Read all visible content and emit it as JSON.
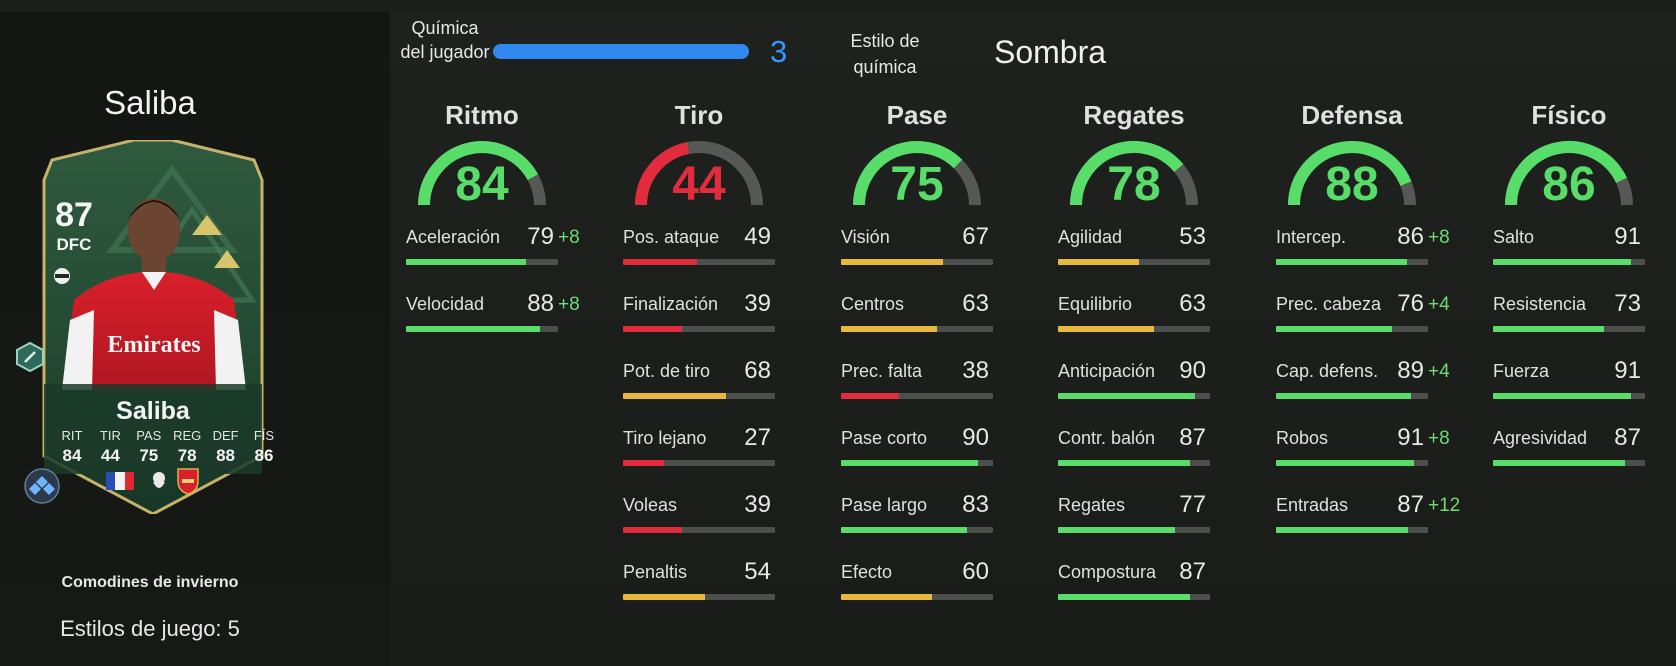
{
  "player": {
    "name": "Saliba",
    "rating": "87",
    "position": "DFC",
    "card_name": "Saliba",
    "card_stats": [
      {
        "label": "RIT",
        "value": "84"
      },
      {
        "label": "TIR",
        "value": "44"
      },
      {
        "label": "PAS",
        "value": "75"
      },
      {
        "label": "REG",
        "value": "78"
      },
      {
        "label": "DEF",
        "value": "88"
      },
      {
        "label": "FÍS",
        "value": "86"
      }
    ],
    "promo": "Comodines de invierno",
    "playstyles": "Estilos de juego: 5"
  },
  "chemistry": {
    "label": "Química del jugador",
    "value": "3",
    "style_label": "Estilo de química",
    "style_value": "Sombra"
  },
  "colors": {
    "green": "#59dd6a",
    "yellow": "#e6b93c",
    "red": "#e22b3c",
    "blue": "#2f89f0"
  },
  "categories": [
    {
      "title": "Ritmo",
      "value": "84",
      "color": "#59dd6a",
      "stats": [
        {
          "label": "Aceleración",
          "value": "79",
          "boost": "+8",
          "color": "#59dd6a"
        },
        {
          "label": "Velocidad",
          "value": "88",
          "boost": "+8",
          "color": "#59dd6a"
        }
      ]
    },
    {
      "title": "Tiro",
      "value": "44",
      "color": "#e22b3c",
      "stats": [
        {
          "label": "Pos. ataque",
          "value": "49",
          "boost": "",
          "color": "#e22b3c"
        },
        {
          "label": "Finalización",
          "value": "39",
          "boost": "",
          "color": "#e22b3c"
        },
        {
          "label": "Pot. de tiro",
          "value": "68",
          "boost": "",
          "color": "#e6b93c"
        },
        {
          "label": "Tiro lejano",
          "value": "27",
          "boost": "",
          "color": "#e22b3c"
        },
        {
          "label": "Voleas",
          "value": "39",
          "boost": "",
          "color": "#e22b3c"
        },
        {
          "label": "Penaltis",
          "value": "54",
          "boost": "",
          "color": "#e6b93c"
        }
      ]
    },
    {
      "title": "Pase",
      "value": "75",
      "color": "#59dd6a",
      "stats": [
        {
          "label": "Visión",
          "value": "67",
          "boost": "",
          "color": "#e6b93c"
        },
        {
          "label": "Centros",
          "value": "63",
          "boost": "",
          "color": "#e6b93c"
        },
        {
          "label": "Prec. falta",
          "value": "38",
          "boost": "",
          "color": "#e22b3c"
        },
        {
          "label": "Pase corto",
          "value": "90",
          "boost": "",
          "color": "#59dd6a"
        },
        {
          "label": "Pase largo",
          "value": "83",
          "boost": "",
          "color": "#59dd6a"
        },
        {
          "label": "Efecto",
          "value": "60",
          "boost": "",
          "color": "#e6b93c"
        }
      ]
    },
    {
      "title": "Regates",
      "value": "78",
      "color": "#59dd6a",
      "stats": [
        {
          "label": "Agilidad",
          "value": "53",
          "boost": "",
          "color": "#e6b93c"
        },
        {
          "label": "Equilibrio",
          "value": "63",
          "boost": "",
          "color": "#e6b93c"
        },
        {
          "label": "Anticipación",
          "value": "90",
          "boost": "",
          "color": "#59dd6a"
        },
        {
          "label": "Contr. balón",
          "value": "87",
          "boost": "",
          "color": "#59dd6a"
        },
        {
          "label": "Regates",
          "value": "77",
          "boost": "",
          "color": "#59dd6a"
        },
        {
          "label": "Compostura",
          "value": "87",
          "boost": "",
          "color": "#59dd6a"
        }
      ]
    },
    {
      "title": "Defensa",
      "value": "88",
      "color": "#59dd6a",
      "stats": [
        {
          "label": "Intercep.",
          "value": "86",
          "boost": "+8",
          "color": "#59dd6a"
        },
        {
          "label": "Prec. cabeza",
          "value": "76",
          "boost": "+4",
          "color": "#59dd6a"
        },
        {
          "label": "Cap. defens.",
          "value": "89",
          "boost": "+4",
          "color": "#59dd6a"
        },
        {
          "label": "Robos",
          "value": "91",
          "boost": "+8",
          "color": "#59dd6a"
        },
        {
          "label": "Entradas",
          "value": "87",
          "boost": "+12",
          "color": "#59dd6a"
        }
      ]
    },
    {
      "title": "Físico",
      "value": "86",
      "color": "#59dd6a",
      "stats": [
        {
          "label": "Salto",
          "value": "91",
          "boost": "",
          "color": "#59dd6a"
        },
        {
          "label": "Resistencia",
          "value": "73",
          "boost": "",
          "color": "#59dd6a"
        },
        {
          "label": "Fuerza",
          "value": "91",
          "boost": "",
          "color": "#59dd6a"
        },
        {
          "label": "Agresividad",
          "value": "87",
          "boost": "",
          "color": "#59dd6a"
        }
      ]
    }
  ]
}
